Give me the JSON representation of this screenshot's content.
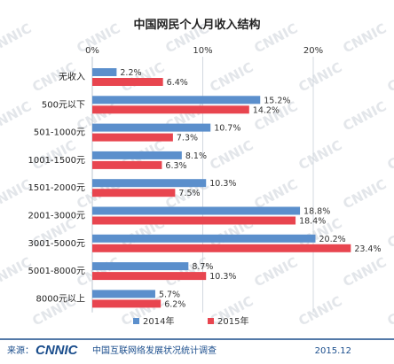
{
  "chart_data": {
    "type": "bar",
    "orientation": "horizontal",
    "title": "中国网民个人月收入结构",
    "categories": [
      "无收入",
      "500元以下",
      "501-1000元",
      "1001-1500元",
      "1501-2000元",
      "2001-3000元",
      "3001-5000元",
      "5001-8000元",
      "8000元以上"
    ],
    "series": [
      {
        "name": "2014年",
        "values": [
          2.2,
          15.2,
          10.7,
          8.1,
          10.3,
          18.8,
          20.2,
          8.7,
          5.7
        ],
        "labels": [
          "2.2%",
          "15.2%",
          "10.7%",
          "8.1%",
          "10.3%",
          "18.8%",
          "20.2%",
          "8.7%",
          "5.7%"
        ]
      },
      {
        "name": "2015年",
        "values": [
          6.4,
          14.2,
          7.3,
          6.3,
          7.5,
          18.4,
          23.4,
          10.3,
          6.2
        ],
        "labels": [
          "6.4%",
          "14.2%",
          "7.3%",
          "6.3%",
          "7.5%",
          "18.4%",
          "23.4%",
          "10.3%",
          "6.2%"
        ]
      }
    ],
    "xlim": [
      0,
      25
    ],
    "xticks": [
      "0%",
      "10%",
      "20%"
    ],
    "xtick_values": [
      0,
      10,
      20
    ],
    "grid": true,
    "legend": "bottom",
    "colors": {
      "2014年": "#5b8fcc",
      "2015年": "#e8454f"
    }
  },
  "footer": {
    "source_label": "来源：",
    "logo_text": "CNNIC",
    "org_name": "中国互联网络发展状况统计调查",
    "date": "2015.12"
  },
  "watermark_text": "CNNIC",
  "colors": {
    "axis": "#c8d0d8",
    "footer_text": "#1a4d8c",
    "footer_rule": "#1a4d8c"
  }
}
